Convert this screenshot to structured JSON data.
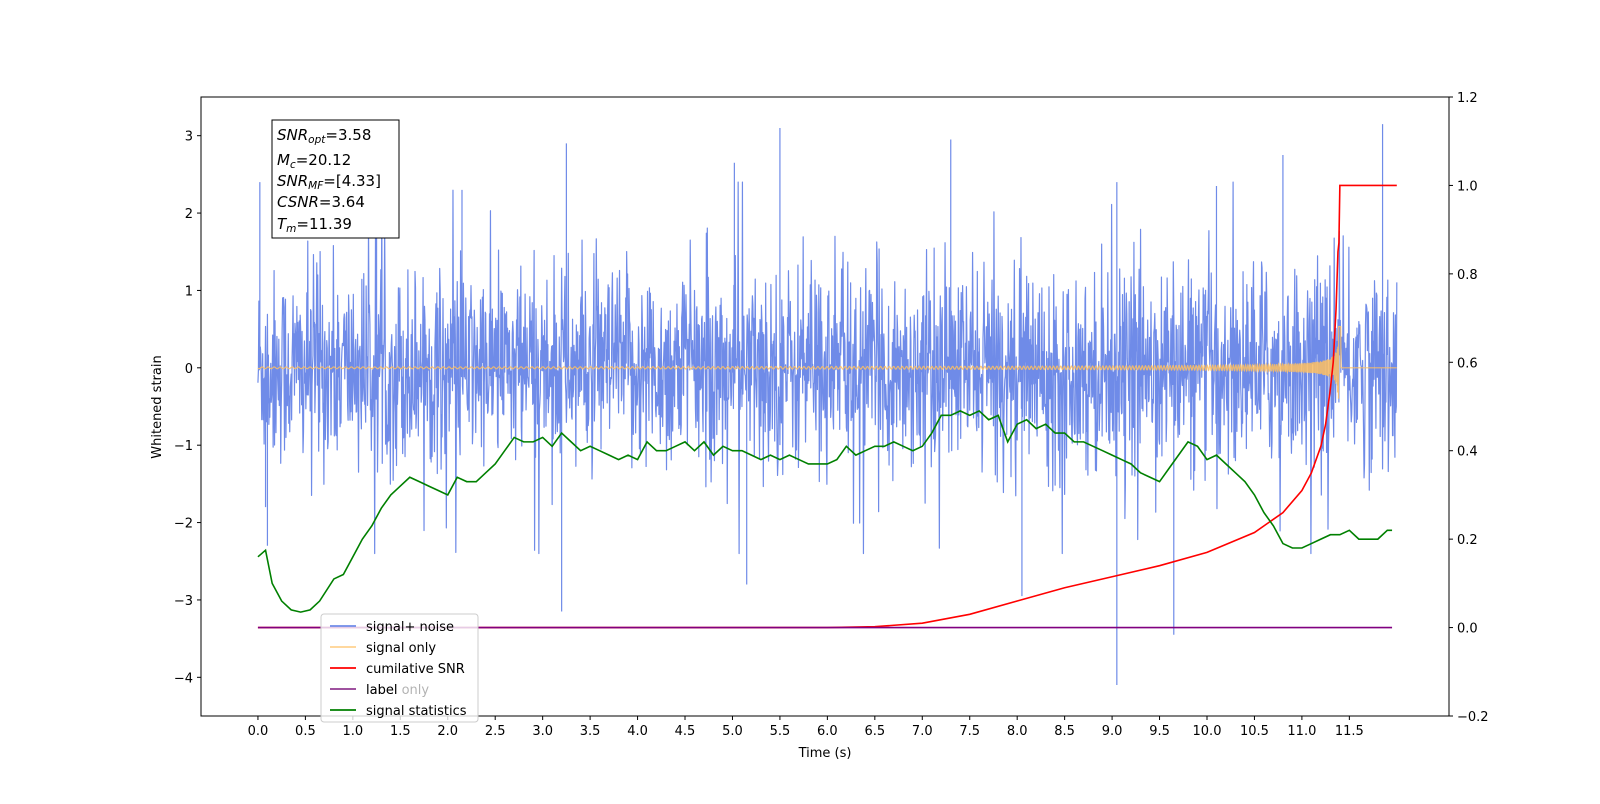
{
  "chart_data": {
    "type": "line",
    "title": "",
    "xlabel": "Time (s)",
    "ylabel": "Whitened strain",
    "y2label": "",
    "xlim": [
      -0.6,
      12.55
    ],
    "ylim": [
      -4.5,
      3.5
    ],
    "y2lim": [
      -0.2,
      1.2
    ],
    "xticks": [
      "0.0",
      "0.5",
      "1.0",
      "1.5",
      "2.0",
      "2.5",
      "3.0",
      "3.5",
      "4.0",
      "4.5",
      "5.0",
      "5.5",
      "6.0",
      "6.5",
      "7.0",
      "7.5",
      "8.0",
      "8.5",
      "9.0",
      "9.5",
      "10.0",
      "10.5",
      "11.0",
      "11.5"
    ],
    "yticks": [
      "3",
      "2",
      "1",
      "0",
      "−1",
      "−2",
      "−3",
      "−4"
    ],
    "y2ticks": [
      "1.2",
      "1.0",
      "0.8",
      "0.6",
      "0.4",
      "0.2",
      "0.0",
      "−0.2"
    ],
    "grid": false,
    "legend_position": "lower-left",
    "annotation": [
      {
        "base": "SNR",
        "sub": "opt",
        "value": "=3.58"
      },
      {
        "base": "M",
        "sub": "c",
        "value": "=20.12"
      },
      {
        "base": "SNR",
        "sub": "MF",
        "value": "=[4.33]"
      },
      {
        "base": "CSNR",
        "sub": "",
        "value": "=3.64"
      },
      {
        "base": "T",
        "sub": "m",
        "value": "=11.39"
      }
    ],
    "series": [
      {
        "name": "signal+ noise",
        "color": "#6f8be8",
        "axis": "left",
        "kind": "noise",
        "t_start": 0.0,
        "t_end": 12.0,
        "sigma": 0.62,
        "spikes": [
          [
            0.02,
            2.4
          ],
          [
            0.08,
            -1.8
          ],
          [
            0.1,
            -2.3
          ],
          [
            1.25,
            2.4
          ],
          [
            2.15,
            2.3
          ],
          [
            3.2,
            -3.15
          ],
          [
            3.25,
            2.9
          ],
          [
            5.02,
            2.65
          ],
          [
            5.5,
            3.1
          ],
          [
            5.15,
            -2.8
          ],
          [
            7.3,
            2.95
          ],
          [
            8.05,
            -2.95
          ],
          [
            9.05,
            -4.1
          ],
          [
            9.65,
            -3.45
          ],
          [
            9.05,
            2.4
          ],
          [
            10.1,
            2.35
          ],
          [
            11.85,
            3.15
          ],
          [
            10.8,
            2.75
          ]
        ]
      },
      {
        "name": "signal only",
        "color": "#ffbf60",
        "axis": "left",
        "kind": "chirp",
        "t_start": 0.0,
        "t_end": 12.0,
        "merger_time": 11.39,
        "peak_amplitude": 0.6
      },
      {
        "name": "cumilative SNR",
        "color": "#ff0000",
        "axis": "right",
        "x": [
          0.0,
          6.0,
          6.5,
          7.0,
          7.5,
          8.0,
          8.5,
          9.0,
          9.5,
          10.0,
          10.5,
          10.8,
          11.0,
          11.1,
          11.2,
          11.25,
          11.3,
          11.33,
          11.36,
          11.38,
          11.39,
          11.4,
          12.0
        ],
        "y": [
          0.0,
          0.0,
          0.002,
          0.01,
          0.03,
          0.06,
          0.09,
          0.115,
          0.14,
          0.17,
          0.215,
          0.26,
          0.31,
          0.35,
          0.41,
          0.46,
          0.54,
          0.6,
          0.72,
          0.85,
          0.87,
          1.0,
          1.0
        ]
      },
      {
        "name": "label",
        "color": "#800080",
        "axis": "right",
        "x": [
          0.0,
          11.95
        ],
        "y": [
          0.0,
          0.0
        ]
      },
      {
        "name": "label only",
        "color": "#c0c0c0",
        "axis": "right",
        "legend_only": true,
        "x": [],
        "y": []
      },
      {
        "name": "signal statistics",
        "color": "#008000",
        "axis": "right",
        "x": [
          0.0,
          0.08,
          0.15,
          0.25,
          0.35,
          0.45,
          0.55,
          0.65,
          0.8,
          0.9,
          1.0,
          1.1,
          1.2,
          1.3,
          1.4,
          1.5,
          1.6,
          1.7,
          1.8,
          1.9,
          2.0,
          2.1,
          2.2,
          2.3,
          2.4,
          2.5,
          2.6,
          2.7,
          2.8,
          2.9,
          3.0,
          3.1,
          3.2,
          3.3,
          3.4,
          3.5,
          3.6,
          3.7,
          3.8,
          3.9,
          4.0,
          4.1,
          4.2,
          4.3,
          4.4,
          4.5,
          4.6,
          4.7,
          4.8,
          4.9,
          5.0,
          5.1,
          5.2,
          5.3,
          5.4,
          5.5,
          5.6,
          5.7,
          5.8,
          5.9,
          6.0,
          6.1,
          6.2,
          6.3,
          6.4,
          6.5,
          6.6,
          6.7,
          6.8,
          6.9,
          7.0,
          7.1,
          7.2,
          7.3,
          7.4,
          7.5,
          7.6,
          7.7,
          7.8,
          7.9,
          8.0,
          8.1,
          8.2,
          8.3,
          8.4,
          8.5,
          8.6,
          8.7,
          8.8,
          8.9,
          9.0,
          9.1,
          9.2,
          9.3,
          9.4,
          9.5,
          9.6,
          9.7,
          9.8,
          9.9,
          10.0,
          10.1,
          10.2,
          10.3,
          10.4,
          10.5,
          10.6,
          10.7,
          10.8,
          10.9,
          11.0,
          11.1,
          11.2,
          11.3,
          11.4,
          11.5,
          11.6,
          11.7,
          11.8,
          11.9,
          11.95
        ],
        "y": [
          0.16,
          0.175,
          0.1,
          0.06,
          0.04,
          0.035,
          0.04,
          0.06,
          0.11,
          0.12,
          0.16,
          0.2,
          0.23,
          0.27,
          0.3,
          0.32,
          0.34,
          0.33,
          0.32,
          0.31,
          0.3,
          0.34,
          0.33,
          0.33,
          0.35,
          0.37,
          0.4,
          0.43,
          0.42,
          0.42,
          0.43,
          0.41,
          0.44,
          0.42,
          0.4,
          0.41,
          0.4,
          0.39,
          0.38,
          0.39,
          0.38,
          0.42,
          0.4,
          0.4,
          0.41,
          0.42,
          0.4,
          0.42,
          0.39,
          0.41,
          0.4,
          0.4,
          0.39,
          0.38,
          0.39,
          0.38,
          0.39,
          0.38,
          0.37,
          0.37,
          0.37,
          0.38,
          0.41,
          0.39,
          0.4,
          0.41,
          0.41,
          0.42,
          0.41,
          0.4,
          0.41,
          0.44,
          0.48,
          0.48,
          0.49,
          0.48,
          0.49,
          0.47,
          0.48,
          0.42,
          0.46,
          0.47,
          0.45,
          0.46,
          0.44,
          0.44,
          0.42,
          0.42,
          0.41,
          0.4,
          0.39,
          0.38,
          0.37,
          0.35,
          0.34,
          0.33,
          0.36,
          0.39,
          0.42,
          0.41,
          0.38,
          0.39,
          0.37,
          0.35,
          0.33,
          0.3,
          0.26,
          0.23,
          0.19,
          0.18,
          0.18,
          0.19,
          0.2,
          0.21,
          0.21,
          0.22,
          0.2,
          0.2,
          0.2,
          0.22,
          0.22
        ]
      }
    ]
  }
}
